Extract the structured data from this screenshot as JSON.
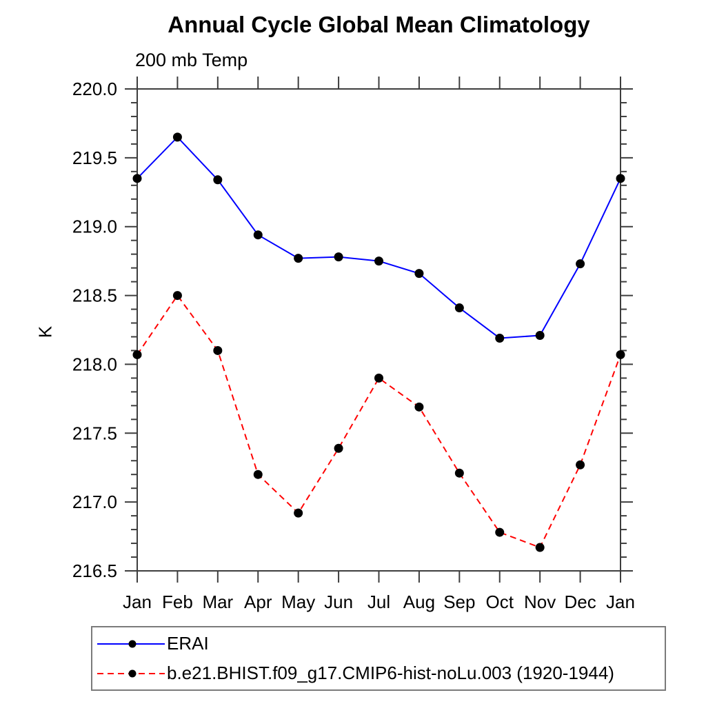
{
  "title": "Annual Cycle Global Mean Climatology",
  "subtitle": "200 mb Temp",
  "ylabel": "K",
  "chart_data": {
    "type": "line",
    "title": "Annual Cycle Global Mean Climatology",
    "subtitle": "200 mb Temp",
    "ylabel": "K",
    "categories": [
      "Jan",
      "Feb",
      "Mar",
      "Apr",
      "May",
      "Jun",
      "Jul",
      "Aug",
      "Sep",
      "Oct",
      "Nov",
      "Dec",
      "Jan"
    ],
    "series": [
      {
        "name": "ERAI",
        "color": "#0000ff",
        "dash": "none",
        "marker": "circle",
        "values": [
          219.35,
          219.65,
          219.34,
          218.94,
          218.77,
          218.78,
          218.75,
          218.66,
          218.41,
          218.19,
          218.21,
          218.73,
          219.35
        ]
      },
      {
        "name": "b.e21.BHIST.f09_g17.CMIP6-hist-noLu.003 (1920-1944)",
        "color": "#ff0000",
        "dash": "9 6",
        "marker": "circle",
        "values": [
          218.07,
          218.5,
          218.1,
          217.2,
          216.92,
          217.39,
          217.9,
          217.69,
          217.21,
          216.78,
          216.67,
          217.27,
          218.07
        ]
      }
    ],
    "ylim": [
      216.5,
      220.0
    ],
    "ytick_major": 0.5,
    "ytick_minor": 0.1,
    "ytick_label_decimals": 1,
    "marker_color": "#000000",
    "axis_color": "#3d3d3d",
    "text_color": "#000000",
    "grid": false,
    "legend_position": "bottom-left-box"
  }
}
